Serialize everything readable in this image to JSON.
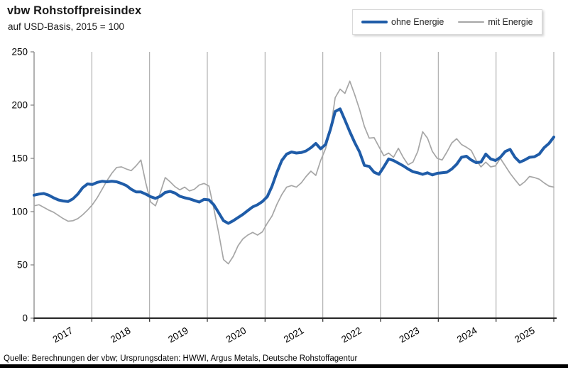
{
  "header": {
    "title": "vbw Rohstoffpreisindex",
    "subtitle": "auf USD-Basis, 2015 = 100"
  },
  "legend": {
    "items": [
      {
        "label": "ohne Energie",
        "color": "#1f5ca8",
        "thickness": 4
      },
      {
        "label": "mit Energie",
        "color": "#a6a6a6",
        "thickness": 2
      }
    ],
    "position": "top-right"
  },
  "footer": {
    "source": "Quelle: Berechnungen der vbw; Ursprungsdaten: HWWI, Argus Metals, Deutsche Rohstoffagentur"
  },
  "chart_data": {
    "type": "line",
    "title": "vbw Rohstoffpreisindex",
    "subtitle": "auf USD-Basis, 2015 = 100",
    "granularity": "monthly",
    "categories": [
      "2017",
      "2018",
      "2019",
      "2020",
      "2021",
      "2022",
      "2023",
      "2024",
      "2025"
    ],
    "points_per_year": 12,
    "ylim": [
      0,
      250
    ],
    "y_ticks": [
      0,
      50,
      100,
      150,
      200,
      250
    ],
    "grid": "vertical-year-lines",
    "legend_position": "top-right",
    "axis_colors": {
      "y_axis": "#7f7f7f",
      "x_axis": "#262626",
      "gridline": "#a0a0a0",
      "tick_label": "#000000"
    },
    "series": [
      {
        "name": "ohne Energie",
        "color": "#1f5ca8",
        "width": 4,
        "values": [
          115.5,
          116.5,
          117,
          115.5,
          113,
          111,
          110,
          109.5,
          112,
          116.5,
          122.5,
          126,
          125.5,
          127.5,
          128.5,
          128,
          128.5,
          128,
          126.5,
          124.5,
          121,
          118.5,
          118.5,
          116.5,
          114,
          112.5,
          114.5,
          118,
          119,
          117.5,
          114.5,
          113,
          112,
          110.5,
          109,
          111.5,
          111,
          106.5,
          99,
          91.5,
          89,
          91.5,
          94.5,
          97.5,
          101,
          104.5,
          106.5,
          109.5,
          114,
          124,
          137,
          148,
          154,
          156,
          155,
          155.5,
          157,
          160,
          164,
          159,
          163,
          177,
          194,
          196.5,
          186,
          175,
          165,
          156,
          143.5,
          142.5,
          137,
          135,
          142,
          149.5,
          148,
          145.5,
          143,
          140,
          137.5,
          136.5,
          135,
          136.5,
          134.5,
          136,
          136.5,
          137,
          140,
          144.5,
          151,
          152,
          148.5,
          146,
          146.5,
          154,
          149.5,
          148,
          151,
          156.5,
          158.5,
          151,
          146.5,
          148.5,
          151,
          151.5,
          154,
          160,
          164,
          170
        ]
      },
      {
        "name": "mit Energie",
        "color": "#a6a6a6",
        "width": 1.7,
        "values": [
          105.5,
          106.5,
          104,
          101.5,
          99.5,
          96.5,
          93.5,
          91,
          91.5,
          93.5,
          97,
          101.5,
          106.5,
          113,
          121,
          129,
          136,
          141.5,
          142,
          140,
          138.5,
          143,
          148.5,
          127,
          109,
          105.5,
          118,
          132,
          128,
          123.5,
          120.5,
          123,
          119.5,
          121,
          125,
          126.5,
          124,
          103,
          80,
          55,
          51,
          58,
          68,
          74.5,
          78,
          80.5,
          78,
          81,
          89,
          96,
          107,
          116,
          123,
          124.5,
          123,
          127,
          133,
          138,
          134,
          148,
          159,
          176,
          207,
          215,
          211,
          222.5,
          210,
          196,
          180,
          169,
          169.5,
          161,
          152.5,
          155,
          151,
          159.5,
          151,
          144,
          146.5,
          156.5,
          175,
          169,
          156.5,
          150,
          148.5,
          156,
          164.5,
          168.5,
          163,
          160.5,
          157.5,
          148.5,
          142,
          146.5,
          142,
          143,
          150,
          143,
          136,
          130,
          124.5,
          128,
          133,
          132,
          130.5,
          127,
          124,
          123
        ]
      }
    ]
  }
}
